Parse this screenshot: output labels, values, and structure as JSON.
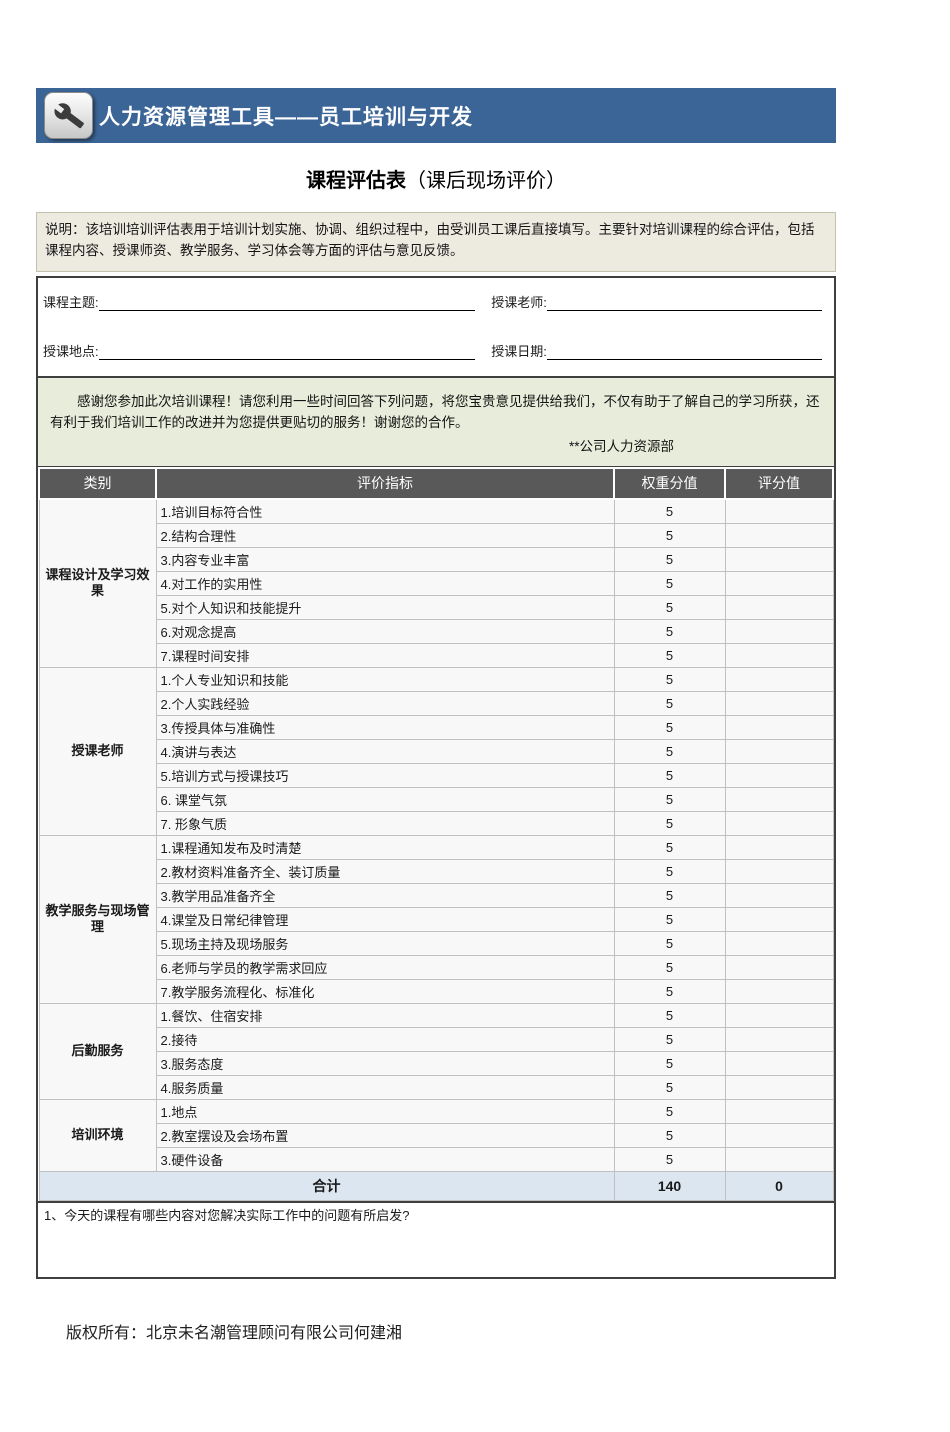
{
  "banner": {
    "title": "人力资源管理工具——员工培训与开发",
    "icon": "wrench-icon"
  },
  "page_title": {
    "main": "课程评估表",
    "sub": "（课后现场评价）"
  },
  "instructions": "说明：该培训培训评估表用于培训计划实施、协调、组织过程中，由受训员工课后直接填写。主要针对培训课程的综合评估，包括课程内容、授课师资、教学服务、学习体会等方面的评估与意见反馈。",
  "form_fields": [
    {
      "label": "课程主题:",
      "value": ""
    },
    {
      "label": "授课老师:",
      "value": ""
    },
    {
      "label": "授课地点:",
      "value": ""
    },
    {
      "label": "授课日期:",
      "value": ""
    }
  ],
  "greeting": {
    "text": "感谢您参加此次培训课程！请您利用一些时间回答下列问题，将您宝贵意见提供给我们，不仅有助于了解自己的学习所获，还有利于我们培训工作的改进并为您提供更贴切的服务！谢谢您的合作。",
    "signature": "**公司人力资源部"
  },
  "table": {
    "headers": [
      "类别",
      "评价指标",
      "权重分值",
      "评分值"
    ],
    "groups": [
      {
        "category": "课程设计及学习效果",
        "items": [
          {
            "label": "1.培训目标符合性",
            "weight": "5",
            "score": ""
          },
          {
            "label": "2.结构合理性",
            "weight": "5",
            "score": ""
          },
          {
            "label": "3.内容专业丰富",
            "weight": "5",
            "score": ""
          },
          {
            "label": "4.对工作的实用性",
            "weight": "5",
            "score": ""
          },
          {
            "label": "5.对个人知识和技能提升",
            "weight": "5",
            "score": ""
          },
          {
            "label": "6.对观念提高",
            "weight": "5",
            "score": ""
          },
          {
            "label": "7.课程时间安排",
            "weight": "5",
            "score": ""
          }
        ]
      },
      {
        "category": "授课老师",
        "items": [
          {
            "label": "1.个人专业知识和技能",
            "weight": "5",
            "score": ""
          },
          {
            "label": "2.个人实践经验",
            "weight": "5",
            "score": ""
          },
          {
            "label": "3.传授具体与准确性",
            "weight": "5",
            "score": ""
          },
          {
            "label": "4.演讲与表达",
            "weight": "5",
            "score": ""
          },
          {
            "label": "5.培训方式与授课技巧",
            "weight": "5",
            "score": ""
          },
          {
            "label": "6. 课堂气氛",
            "weight": "5",
            "score": ""
          },
          {
            "label": "7. 形象气质",
            "weight": "5",
            "score": ""
          }
        ]
      },
      {
        "category": "教学服务与现场管理",
        "items": [
          {
            "label": "1.课程通知发布及时清楚",
            "weight": "5",
            "score": ""
          },
          {
            "label": "2.教材资料准备齐全、装订质量",
            "weight": "5",
            "score": ""
          },
          {
            "label": "3.教学用品准备齐全",
            "weight": "5",
            "score": ""
          },
          {
            "label": "4.课堂及日常纪律管理",
            "weight": "5",
            "score": ""
          },
          {
            "label": "5.现场主持及现场服务",
            "weight": "5",
            "score": ""
          },
          {
            "label": "6.老师与学员的教学需求回应",
            "weight": "5",
            "score": ""
          },
          {
            "label": "7.教学服务流程化、标准化",
            "weight": "5",
            "score": ""
          }
        ]
      },
      {
        "category": "后勤服务",
        "items": [
          {
            "label": "1.餐饮、住宿安排",
            "weight": "5",
            "score": ""
          },
          {
            "label": "2.接待",
            "weight": "5",
            "score": ""
          },
          {
            "label": "3.服务态度",
            "weight": "5",
            "score": ""
          },
          {
            "label": "4.服务质量",
            "weight": "5",
            "score": ""
          }
        ]
      },
      {
        "category": "培训环境",
        "items": [
          {
            "label": "1.地点",
            "weight": "5",
            "score": ""
          },
          {
            "label": "2.教室摆设及会场布置",
            "weight": "5",
            "score": ""
          },
          {
            "label": "3.硬件设备",
            "weight": "5",
            "score": ""
          }
        ]
      }
    ],
    "total": {
      "label": "合计",
      "weight": "140",
      "score": "0"
    }
  },
  "question": "1、今天的课程有哪些内容对您解决实际工作中的问题有所启发?",
  "footer": "版权所有：北京未名潮管理顾问有限公司何建湘",
  "colors": {
    "banner_bg": "#3B6596",
    "instructions_bg": "#EDEAE0",
    "greeting_bg": "#E8ECDA",
    "table_header_bg": "#595959",
    "total_bg": "#DCE6F1"
  }
}
